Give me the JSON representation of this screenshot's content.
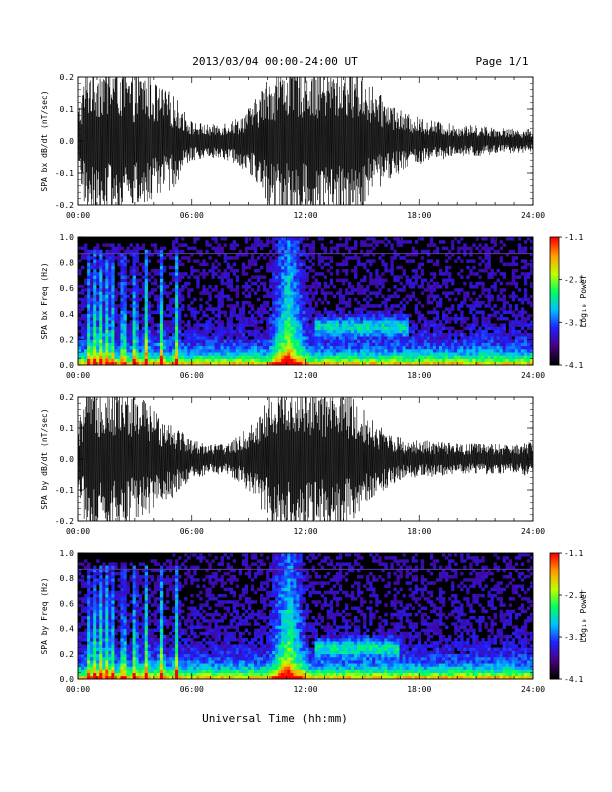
{
  "page": {
    "title": "2013/03/04  00:00-24:00 UT",
    "page_label": "Page 1/1",
    "xlabel": "Universal Time (hh:mm)"
  },
  "colorbar": {
    "label": "Log₁₀ Power",
    "ticks": [
      "-1.1",
      "-2.1",
      "-3.1",
      "-4.1"
    ],
    "range": [
      -4.1,
      -1.1
    ],
    "colormap": [
      "#000000",
      "#4b0082",
      "#2020ff",
      "#00c0ff",
      "#00ff60",
      "#c0ff00",
      "#ffa000",
      "#ff0000"
    ]
  },
  "chart_data": [
    {
      "type": "line",
      "panel": "bx-waveform",
      "ylabel": "SPA bx dB/dt (nT/sec)",
      "x_ticks": [
        "00:00",
        "06:00",
        "12:00",
        "18:00",
        "24:00"
      ],
      "y_ticks": [
        "-0.2",
        "-0.1",
        "0.0",
        "0.1",
        "0.2"
      ],
      "xlim": [
        0,
        24
      ],
      "ylim": [
        -0.2,
        0.2
      ],
      "envelope": {
        "hours": [
          0,
          0.5,
          1.0,
          1.4,
          1.8,
          2.2,
          2.8,
          3.5,
          4.2,
          5.0,
          6.0,
          7.0,
          7.8,
          8.5,
          9.3,
          10.0,
          10.7,
          11.4,
          12.0,
          12.6,
          13.3,
          14.0,
          14.6,
          15.2,
          15.8,
          16.5,
          17.2,
          18.0,
          19.0,
          20.0,
          21.0,
          22.0,
          23.0,
          24.0
        ],
        "amplitude": [
          0.08,
          0.2,
          0.2,
          0.2,
          0.2,
          0.2,
          0.16,
          0.18,
          0.14,
          0.12,
          0.05,
          0.04,
          0.05,
          0.06,
          0.1,
          0.16,
          0.2,
          0.2,
          0.2,
          0.2,
          0.18,
          0.2,
          0.2,
          0.16,
          0.12,
          0.1,
          0.07,
          0.06,
          0.05,
          0.04,
          0.04,
          0.035,
          0.03,
          0.03
        ]
      }
    },
    {
      "type": "heatmap",
      "panel": "bx-spectrogram",
      "ylabel": "SPA bx Freq (Hz)",
      "x_ticks": [
        "00:00",
        "06:00",
        "12:00",
        "18:00",
        "24:00"
      ],
      "y_ticks": [
        "0.0",
        "0.2",
        "0.4",
        "0.6",
        "0.8",
        "1.0"
      ],
      "xlim": [
        0,
        24
      ],
      "ylim": [
        0,
        1.0
      ],
      "zlim": [
        -4.1,
        -1.1
      ],
      "features": [
        {
          "kind": "vertical_bursts",
          "hours": [
            0.6,
            0.9,
            1.2,
            1.5,
            1.8,
            2.4,
            3.0,
            3.6,
            4.4,
            5.2
          ],
          "max_freq": 0.9
        },
        {
          "kind": "broadband_burst",
          "hour_range": [
            10.0,
            12.2
          ],
          "max_freq": 1.0
        },
        {
          "kind": "pc1_band",
          "hour_range": [
            12.5,
            17.5
          ],
          "freq_center": 0.3
        }
      ]
    },
    {
      "type": "line",
      "panel": "by-waveform",
      "ylabel": "SPA by dB/dt (nT/sec)",
      "x_ticks": [
        "00:00",
        "06:00",
        "12:00",
        "18:00",
        "24:00"
      ],
      "y_ticks": [
        "-0.2",
        "-0.1",
        "0.0",
        "0.1",
        "0.2"
      ],
      "xlim": [
        0,
        24
      ],
      "ylim": [
        -0.2,
        0.2
      ],
      "envelope": {
        "hours": [
          0,
          0.5,
          1.0,
          1.4,
          1.8,
          2.2,
          2.8,
          3.5,
          4.2,
          5.0,
          6.0,
          7.0,
          7.8,
          8.5,
          9.3,
          10.0,
          10.7,
          11.4,
          12.0,
          12.6,
          13.3,
          14.0,
          14.6,
          15.2,
          15.8,
          16.5,
          17.2,
          18.0,
          19.0,
          20.0,
          21.0,
          22.0,
          23.0,
          24.0
        ],
        "amplitude": [
          0.08,
          0.2,
          0.2,
          0.2,
          0.2,
          0.2,
          0.17,
          0.16,
          0.12,
          0.1,
          0.05,
          0.04,
          0.04,
          0.06,
          0.1,
          0.16,
          0.2,
          0.2,
          0.2,
          0.18,
          0.18,
          0.18,
          0.16,
          0.12,
          0.09,
          0.07,
          0.05,
          0.05,
          0.045,
          0.04,
          0.04,
          0.04,
          0.035,
          0.05
        ]
      }
    },
    {
      "type": "heatmap",
      "panel": "by-spectrogram",
      "ylabel": "SPA by Freq (Hz)",
      "x_ticks": [
        "00:00",
        "06:00",
        "12:00",
        "18:00",
        "24:00"
      ],
      "y_ticks": [
        "0.0",
        "0.2",
        "0.4",
        "0.6",
        "0.8",
        "1.0"
      ],
      "xlim": [
        0,
        24
      ],
      "ylim": [
        0,
        1.0
      ],
      "zlim": [
        -4.1,
        -1.1
      ],
      "features": [
        {
          "kind": "vertical_bursts",
          "hours": [
            0.6,
            0.9,
            1.2,
            1.5,
            1.8,
            2.4,
            3.0,
            3.6,
            4.4,
            5.2
          ],
          "max_freq": 0.9
        },
        {
          "kind": "broadband_burst",
          "hour_range": [
            10.0,
            12.2
          ],
          "max_freq": 1.0
        },
        {
          "kind": "pc1_band",
          "hour_range": [
            12.5,
            17.0
          ],
          "freq_center": 0.25
        }
      ]
    }
  ]
}
